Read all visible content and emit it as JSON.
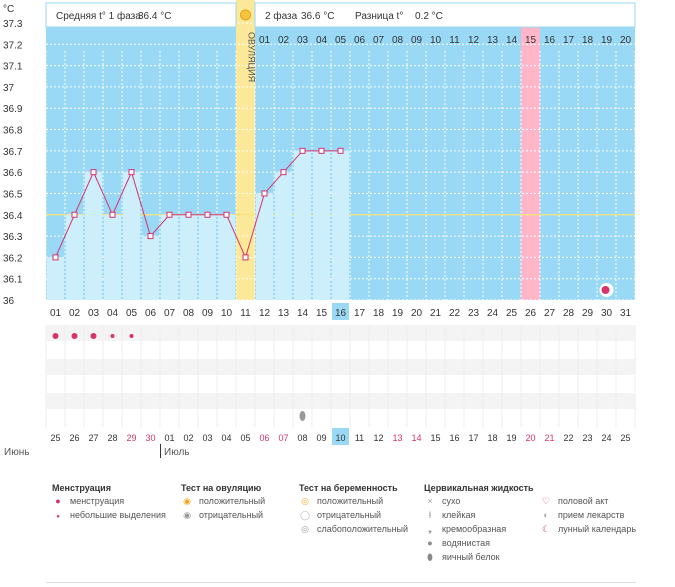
{
  "header": {
    "unit": "°C",
    "phase1_label": "Средняя t° 1 фаза",
    "phase1_value": "36.4 °C",
    "phase2_label": "2 фаза",
    "phase2_value": "36.6 °C",
    "diff_label": "Разница t°",
    "diff_value": "0.2 °C"
  },
  "chart_data": {
    "type": "line",
    "ylim": [
      36.0,
      37.3
    ],
    "yticks": [
      "37.3",
      "37.2",
      "37.1",
      "37",
      "36.9",
      "36.8",
      "36.7",
      "36.6",
      "36.5",
      "36.4",
      "36.3",
      "36.2",
      "36.1",
      "36"
    ],
    "coverline": 36.4,
    "ovulation_label": "ОВУЛЯЦИЯ",
    "ovulation_day": 11,
    "highlight_day": 26,
    "today_day": 16,
    "phase2_numbers": [
      "01",
      "02",
      "03",
      "04",
      "05",
      "06",
      "07",
      "08",
      "09",
      "10",
      "11",
      "12",
      "13",
      "14",
      "15",
      "16",
      "17",
      "18",
      "19",
      "20"
    ],
    "cycle_days": [
      "01",
      "02",
      "03",
      "04",
      "05",
      "06",
      "07",
      "08",
      "09",
      "10",
      "11",
      "12",
      "13",
      "14",
      "15",
      "16",
      "17",
      "18",
      "19",
      "20",
      "21",
      "22",
      "23",
      "24",
      "25",
      "26",
      "27",
      "28",
      "29",
      "30",
      "31"
    ],
    "temperatures": [
      36.2,
      36.4,
      36.6,
      36.4,
      36.6,
      36.3,
      36.4,
      36.4,
      36.4,
      36.4,
      36.2,
      36.5,
      36.6,
      36.7,
      36.7,
      36.7
    ],
    "calendar_dates": [
      "25",
      "26",
      "27",
      "28",
      "29",
      "30",
      "01",
      "02",
      "03",
      "04",
      "05",
      "06",
      "07",
      "08",
      "09",
      "10",
      "11",
      "12",
      "13",
      "14",
      "15",
      "16",
      "17",
      "18",
      "19",
      "20",
      "21",
      "22",
      "23",
      "24",
      "25"
    ],
    "red_date_indices": [
      4,
      5,
      11,
      12,
      18,
      19,
      25,
      26
    ],
    "menstruation": [
      "heavy",
      "heavy",
      "heavy",
      "light",
      "light"
    ]
  },
  "months": {
    "first": "Июнь",
    "second": "Июль"
  },
  "legend": {
    "menstruation": {
      "title": "Менструация",
      "items": [
        "менструация",
        "небольшие выделения"
      ]
    },
    "ovulation_test": {
      "title": "Тест на овуляцию",
      "items": [
        "положительный",
        "отрицательный"
      ]
    },
    "pregnancy_test": {
      "title": "Тест на беременность",
      "items": [
        "положительный",
        "отрицательный",
        "слабоположительный"
      ]
    },
    "cervical": {
      "title": "Цервикальная жидкость",
      "items": [
        "сухо",
        "клейкая",
        "кремообразная",
        "водянистая",
        "яичный белок"
      ]
    },
    "other": {
      "items": [
        "половой акт",
        "прием лекарств",
        "лунный календарь"
      ]
    }
  },
  "colors": {
    "bg": "#99d9f5",
    "bar": "#cdeefb",
    "line": "#d6336c",
    "ovulation": "#fbe898",
    "highlight": "#ffb6c8"
  }
}
